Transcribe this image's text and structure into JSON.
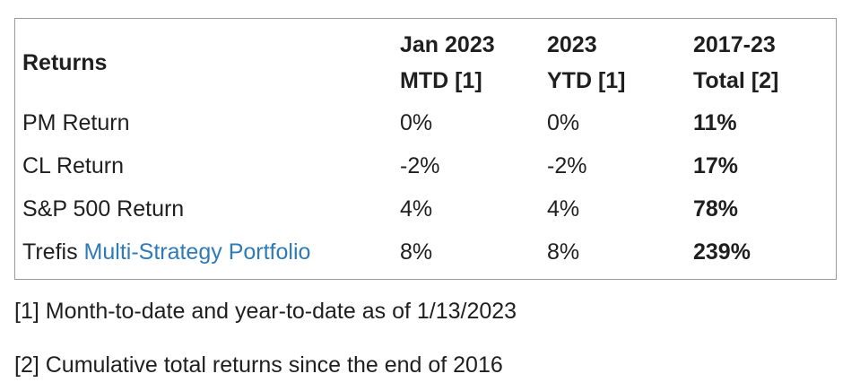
{
  "header": {
    "returns": "Returns",
    "col1_line1": "Jan 2023",
    "col1_line2": "MTD [1]",
    "col2_line1": "2023",
    "col2_line2": "YTD [1]",
    "col3_line1": "2017-23",
    "col3_line2": "Total [2]"
  },
  "rows": [
    {
      "label": "PM Return",
      "mtd": "0%",
      "ytd": "0%",
      "total": "11%"
    },
    {
      "label": "CL Return",
      "mtd": "-2%",
      "ytd": "-2%",
      "total": "17%"
    },
    {
      "label": "S&P 500 Return",
      "mtd": "4%",
      "ytd": "4%",
      "total": "78%"
    },
    {
      "label_prefix": "Trefis",
      "label_link": "Multi-Strategy Portfolio",
      "mtd": "8%",
      "ytd": "8%",
      "total": "239%"
    }
  ],
  "footnotes": [
    "[1] Month-to-date and year-to-date as of 1/13/2023",
    "[2] Cumulative total returns since the end of 2016"
  ],
  "colors": {
    "link": "#2f7ab8",
    "border": "#9a9a9a",
    "text": "#1f1f1f"
  }
}
